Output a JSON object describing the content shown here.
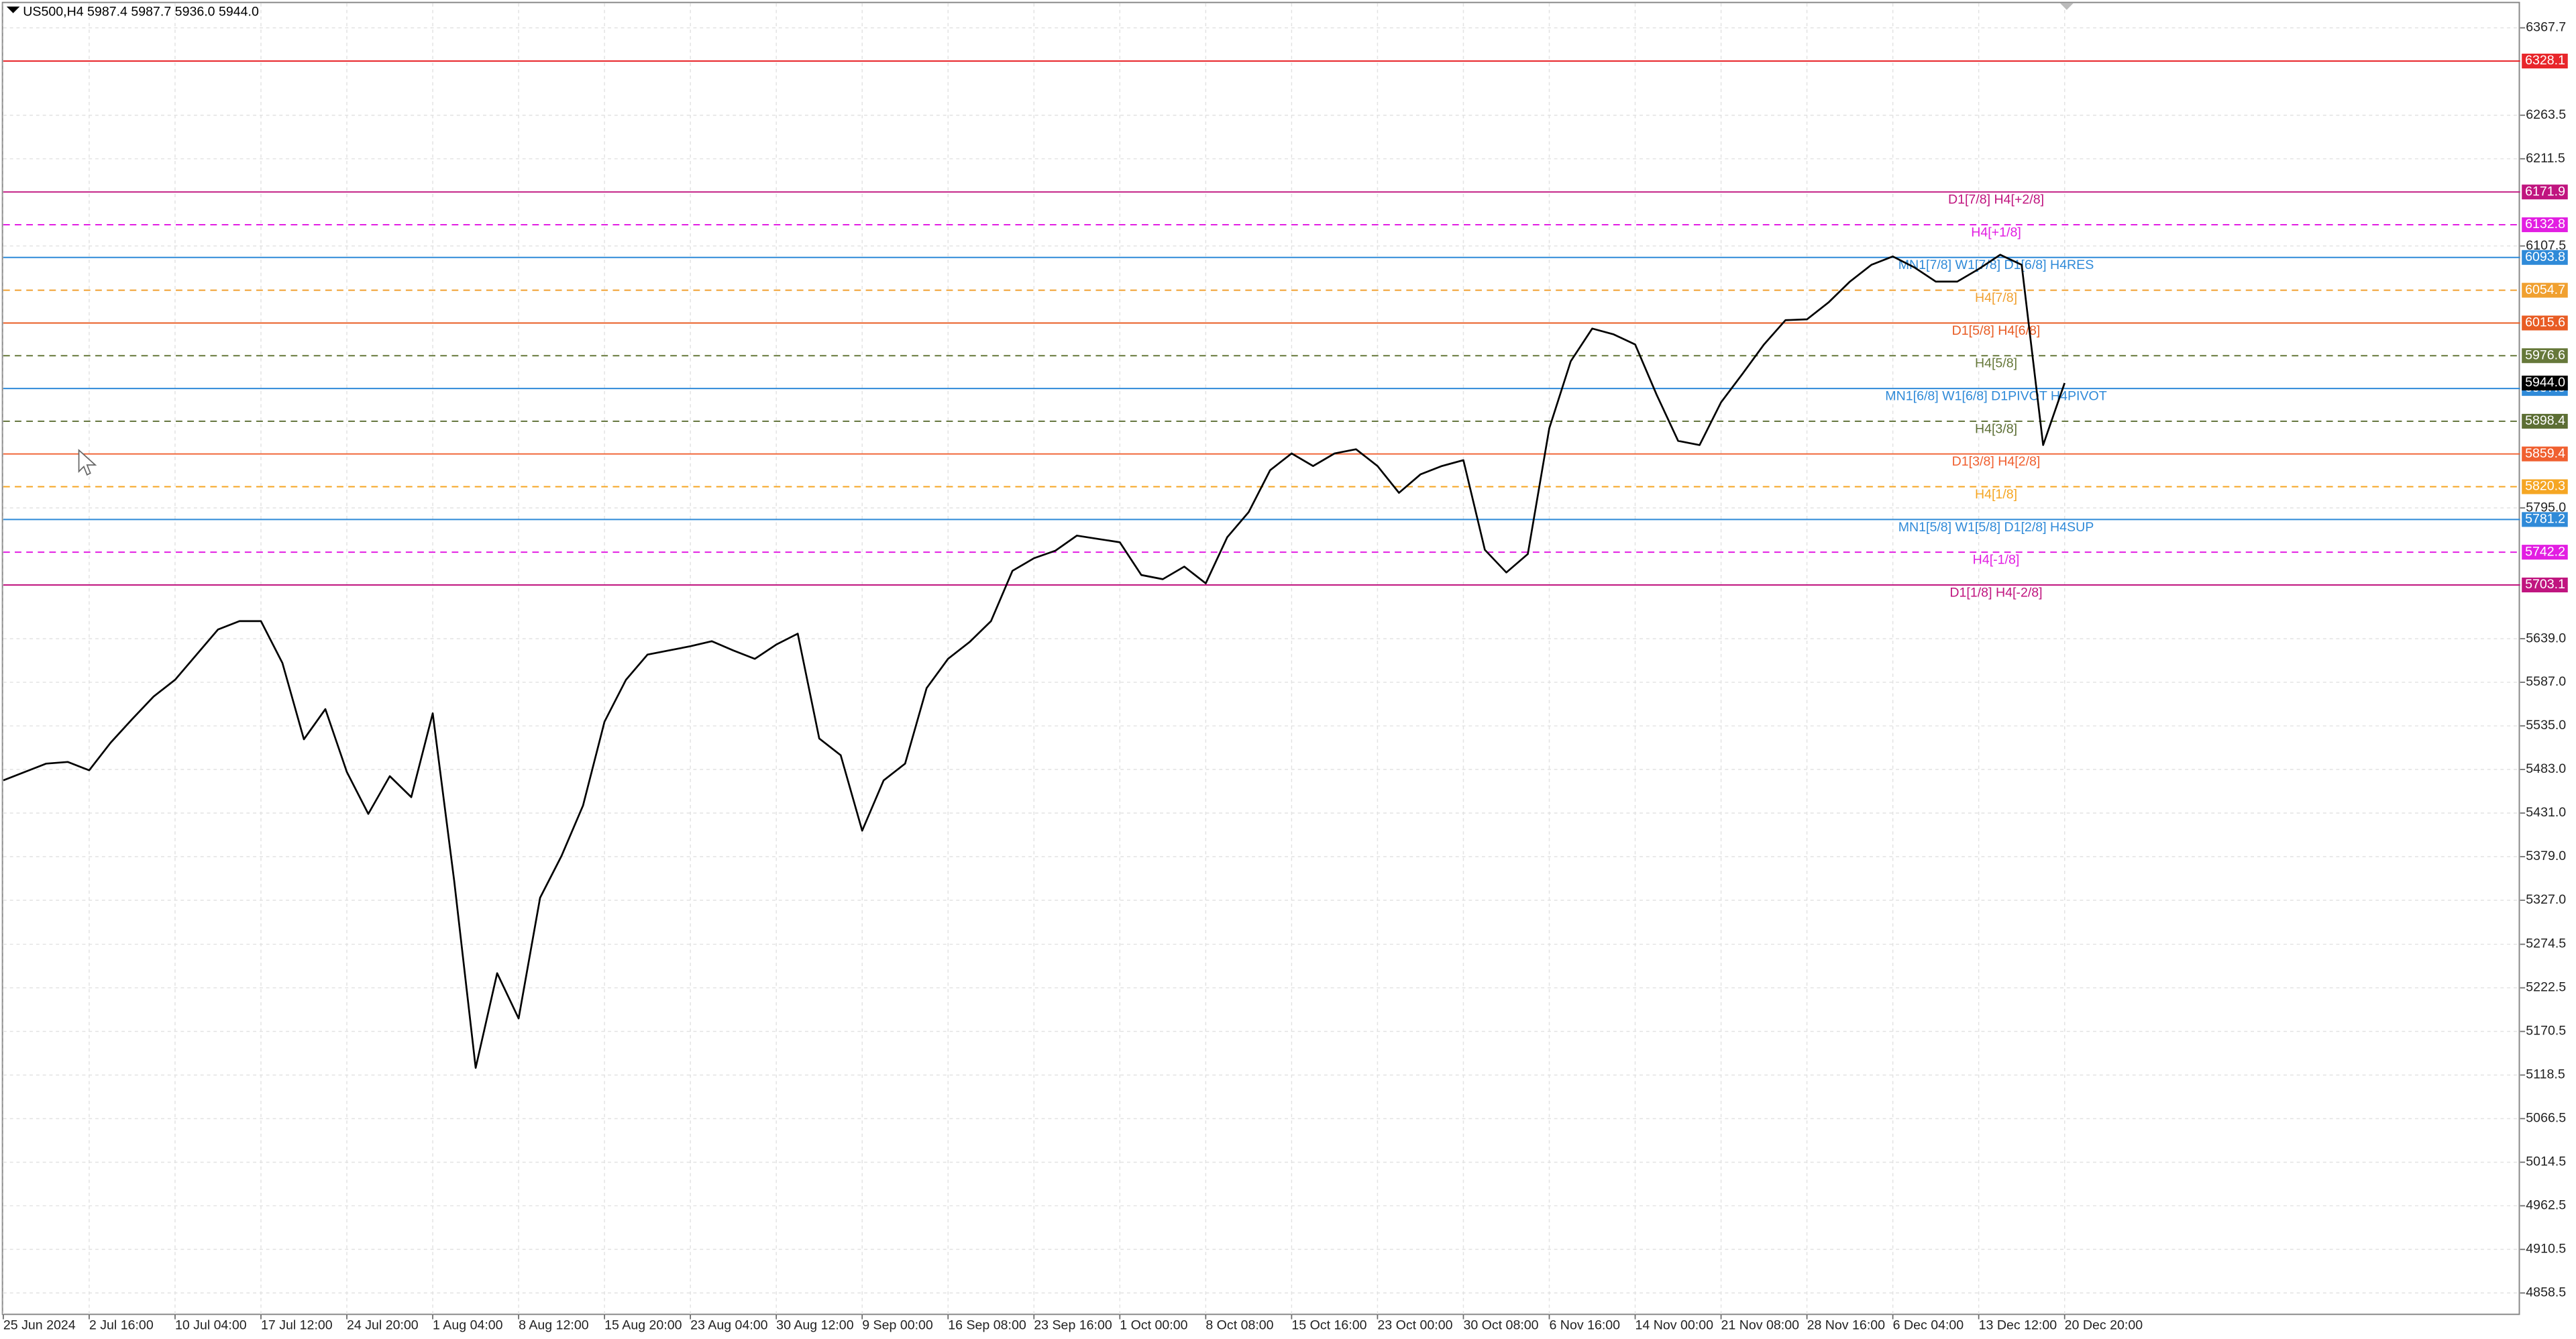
{
  "chart_data": {
    "type": "line",
    "title": "US500,H4  5987.4 5987.7 5936.0 5944.0",
    "color": "#000000",
    "grid": true,
    "categories": [
      "25 Jun 2024",
      null,
      null,
      null,
      "2 Jul 16:00",
      null,
      null,
      null,
      "10 Jul 04:00",
      null,
      null,
      null,
      "17 Jul 12:00",
      null,
      null,
      null,
      "24 Jul 20:00",
      null,
      null,
      null,
      "1 Aug 04:00",
      null,
      null,
      null,
      "8 Aug 12:00",
      null,
      null,
      null,
      "15 Aug 20:00",
      null,
      null,
      null,
      "23 Aug 04:00",
      null,
      null,
      null,
      "30 Aug 12:00",
      null,
      null,
      null,
      "9 Sep 00:00",
      null,
      null,
      null,
      "16 Sep 08:00",
      null,
      null,
      null,
      "23 Sep 16:00",
      null,
      null,
      null,
      "1 Oct 00:00",
      null,
      null,
      null,
      "8 Oct 08:00",
      null,
      null,
      null,
      "15 Oct 16:00",
      null,
      null,
      null,
      "23 Oct 00:00",
      null,
      null,
      null,
      "30 Oct 08:00",
      null,
      null,
      null,
      "6 Nov 16:00",
      null,
      null,
      null,
      "14 Nov 00:00",
      null,
      null,
      null,
      "21 Nov 08:00",
      null,
      null,
      null,
      "28 Nov 16:00",
      null,
      null,
      null,
      "6 Dec 04:00",
      null,
      null,
      null,
      "13 Dec 12:00",
      null,
      null,
      null,
      "20 Dec 20:00"
    ],
    "values": [
      5470,
      5480,
      5490,
      5492,
      5482,
      5515,
      5543,
      5570,
      5590,
      5620,
      5650,
      5660,
      5660,
      5610,
      5519,
      5555,
      5480,
      5430,
      5475,
      5450,
      5550,
      5350,
      5127,
      5240,
      5186,
      5330,
      5380,
      5440,
      5540,
      5590,
      5620,
      5625,
      5630,
      5636,
      5625,
      5615,
      5632,
      5645,
      5520,
      5500,
      5410,
      5470,
      5490,
      5580,
      5615,
      5635,
      5660,
      5720,
      5735,
      5744,
      5762,
      5758,
      5754,
      5715,
      5710,
      5725,
      5705,
      5760,
      5790,
      5840,
      5860,
      5845,
      5860,
      5865,
      5845,
      5813,
      5835,
      5845,
      5852,
      5745,
      5718,
      5740,
      5890,
      5970,
      6009,
      6002,
      5990,
      5930,
      5875,
      5870,
      5921,
      5955,
      5990,
      6019,
      6020,
      6040,
      6065,
      6085,
      6095,
      6082,
      6065,
      6065,
      6080,
      6097,
      6085,
      5870,
      5944
    ],
    "ylim": [
      4833,
      6397
    ],
    "yticks": [
      6367.7,
      6263.5,
      6211.5,
      6107.5,
      {
        "value": 5795,
        "label": "5795.0"
      },
      {
        "value": 5639,
        "label": "5639.0"
      },
      {
        "value": 5587,
        "label": "5587.0"
      },
      {
        "value": 5535,
        "label": "5535.0"
      },
      {
        "value": 5483,
        "label": "5483.0"
      },
      {
        "value": 5431,
        "label": "5431.0"
      },
      {
        "value": 5379,
        "label": "5379.0"
      },
      {
        "value": 5327,
        "label": "5327.0"
      },
      5274.5,
      5222.5,
      5170.5,
      5118.5,
      5066.5,
      5014.5,
      4962.5,
      4910.5,
      4858.5
    ],
    "current_price": {
      "value": 5944,
      "label": "5944.0"
    },
    "levels": [
      {
        "value": 6328.1,
        "color": "#e8262b",
        "style": "solid"
      },
      {
        "value": 6171.9,
        "color": "#c0157f",
        "style": "solid",
        "label": "D1[7/8] H4[+2/8]"
      },
      {
        "value": 6132.8,
        "color": "#e21ee2",
        "style": "dashed",
        "label": "H4[+1/8]"
      },
      {
        "value": 6093.8,
        "color": "#2f8ad8",
        "style": "solid",
        "label": "MN1[7/8] W1[7/8] D1[6/8] H4RES"
      },
      {
        "value": 6054.7,
        "color": "#f0a030",
        "style": "dashed",
        "label": "H4[7/8]"
      },
      {
        "value": 6015.6,
        "color": "#e85c24",
        "style": "solid",
        "label": "D1[5/8] H4[6/8]"
      },
      {
        "value": 5976.6,
        "color": "#66783a",
        "style": "dashed",
        "label": "H4[5/8]"
      },
      {
        "value": 5937.5,
        "color": "#2f8ad8",
        "style": "solid",
        "label": "MN1[6/8] W1[6/8] D1PIVOT H4PIVOT"
      },
      {
        "value": 5898.4,
        "color": "#5c6e34",
        "style": "dashed",
        "label": "H4[3/8]"
      },
      {
        "value": 5859.4,
        "color": "#f06030",
        "style": "solid",
        "label": "D1[3/8] H4[2/8]"
      },
      {
        "value": 5820.3,
        "color": "#f5a623",
        "style": "dashed",
        "label": "H4[1/8]"
      },
      {
        "value": 5781.2,
        "color": "#2f8ad8",
        "style": "solid",
        "label": "MN1[5/8] W1[5/8] D1[2/8] H4SUP"
      },
      {
        "value": 5742.2,
        "color": "#e21ee2",
        "style": "dashed",
        "label": "H4[-1/8]"
      },
      {
        "value": 5703.1,
        "color": "#c0157f",
        "style": "solid",
        "label": "D1[1/8] H4[-2/8]"
      }
    ]
  }
}
